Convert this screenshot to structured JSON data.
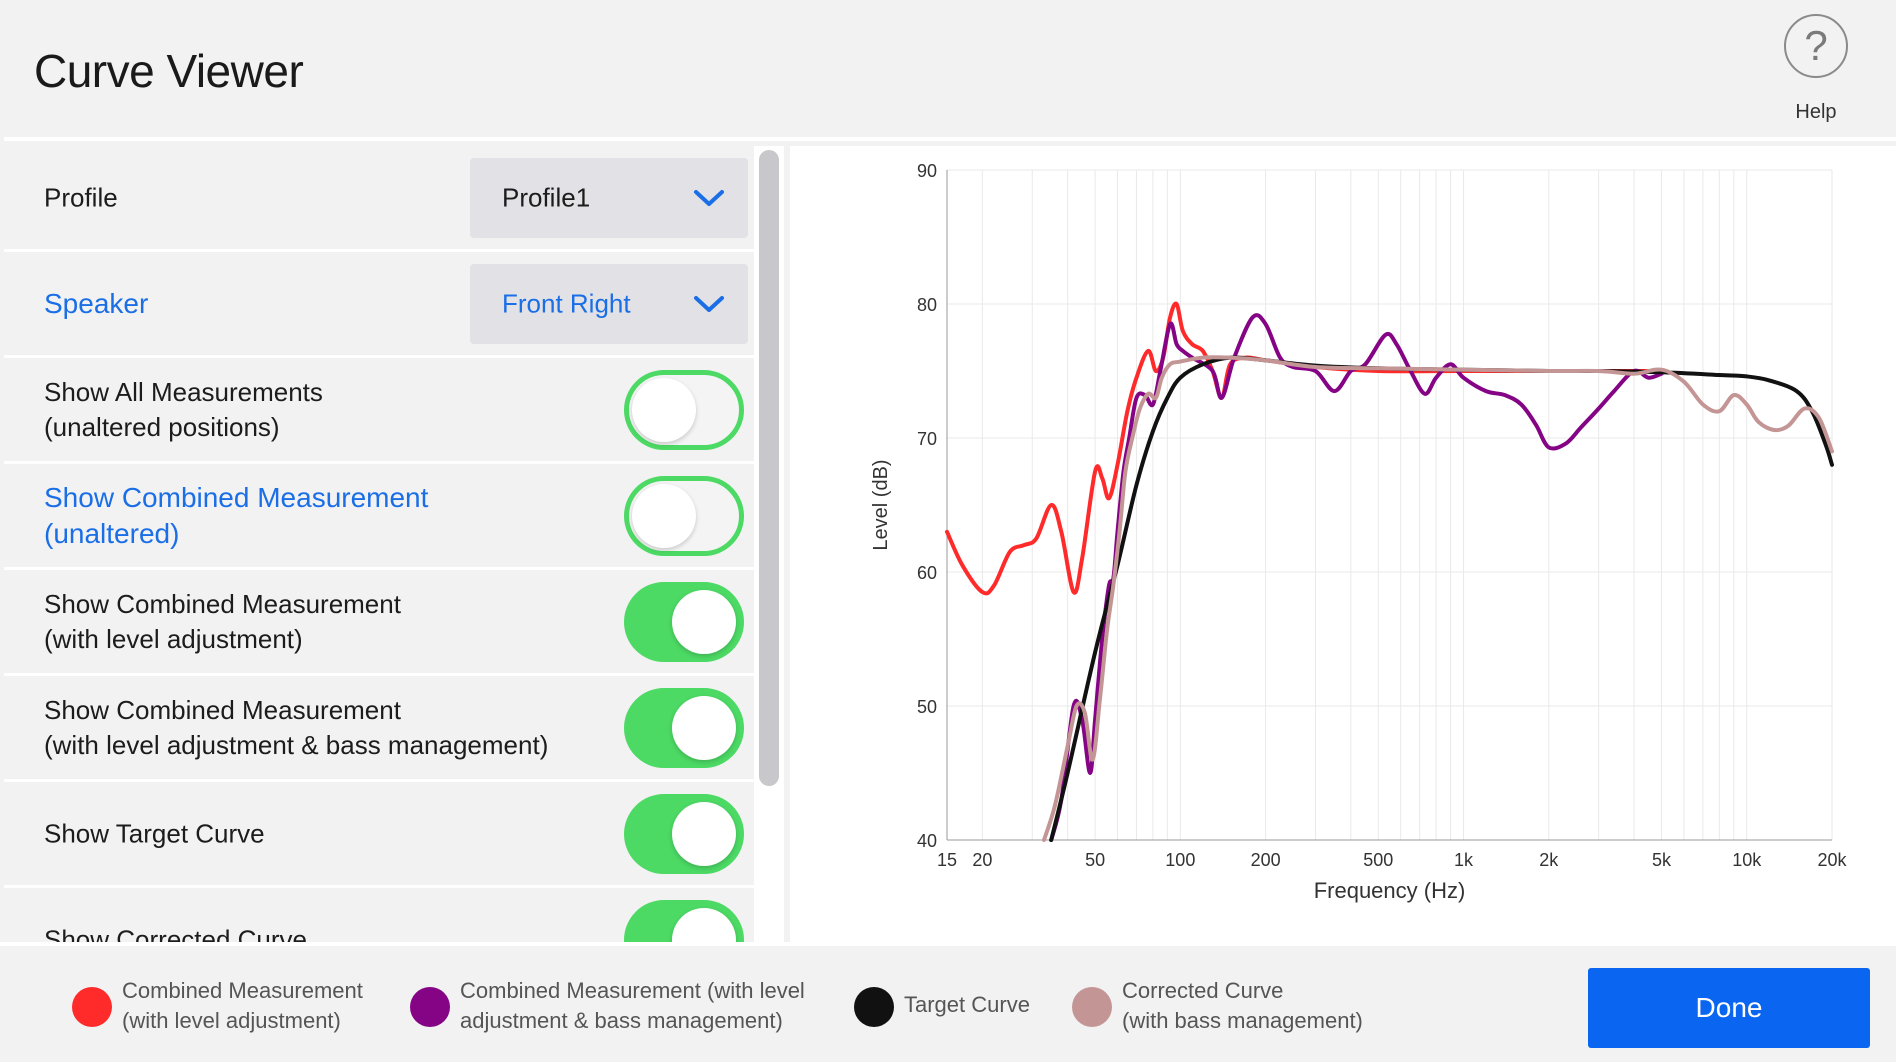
{
  "header": {
    "title": "Curve Viewer",
    "help_icon": "?",
    "help_label": "Help"
  },
  "settings": {
    "profile": {
      "label": "Profile",
      "value": "Profile1"
    },
    "speaker": {
      "label": "Speaker",
      "value": "Front Right"
    },
    "toggles": [
      {
        "label_line1": "Show All Measurements",
        "label_line2": "(unaltered  positions)",
        "on": false,
        "highlight": false
      },
      {
        "label_line1": "Show Combined Measurement",
        "label_line2": "(unaltered)",
        "on": false,
        "highlight": true
      },
      {
        "label_line1": "Show Combined Measurement",
        "label_line2": "(with level adjustment)",
        "on": true,
        "highlight": false
      },
      {
        "label_line1": "Show Combined Measurement",
        "label_line2": "(with level adjustment & bass management)",
        "on": true,
        "highlight": false
      },
      {
        "label_line1": "Show Target Curve",
        "label_line2": "",
        "on": true,
        "highlight": false
      },
      {
        "label_line1": "Show Corrected Curve",
        "label_line2": "",
        "on": true,
        "highlight": false
      }
    ]
  },
  "chart_data": {
    "type": "line",
    "xlabel": "Frequency (Hz)",
    "ylabel": "Level (dB)",
    "x_scale": "log",
    "xlim": [
      15,
      20000
    ],
    "ylim": [
      40,
      90
    ],
    "x_ticks": [
      {
        "value": 15,
        "label": "15"
      },
      {
        "value": 20,
        "label": "20"
      },
      {
        "value": 50,
        "label": "50"
      },
      {
        "value": 100,
        "label": "100"
      },
      {
        "value": 200,
        "label": "200"
      },
      {
        "value": 500,
        "label": "500"
      },
      {
        "value": 1000,
        "label": "1k"
      },
      {
        "value": 2000,
        "label": "2k"
      },
      {
        "value": 5000,
        "label": "5k"
      },
      {
        "value": 10000,
        "label": "10k"
      },
      {
        "value": 20000,
        "label": "20k"
      }
    ],
    "y_ticks": [
      40,
      50,
      60,
      70,
      80,
      90
    ],
    "grid": true,
    "series": [
      {
        "name": "Combined Measurement (with level adjustment)",
        "color": "#ff2a2a",
        "points": [
          [
            15,
            63
          ],
          [
            17,
            60.5
          ],
          [
            20,
            58.5
          ],
          [
            22,
            59
          ],
          [
            25,
            61.5
          ],
          [
            28,
            62
          ],
          [
            31,
            62.5
          ],
          [
            35,
            65
          ],
          [
            38,
            63
          ],
          [
            42,
            58.5
          ],
          [
            45,
            61
          ],
          [
            50,
            67.5
          ],
          [
            53,
            67
          ],
          [
            56,
            65.5
          ],
          [
            60,
            68
          ],
          [
            65,
            72
          ],
          [
            70,
            74.5
          ],
          [
            77,
            76.5
          ],
          [
            82,
            75
          ],
          [
            87,
            76
          ],
          [
            92,
            79
          ],
          [
            97,
            80
          ],
          [
            102,
            78
          ],
          [
            110,
            77
          ],
          [
            120,
            76.5
          ],
          [
            130,
            75
          ],
          [
            140,
            73
          ],
          [
            150,
            75.5
          ],
          [
            170,
            76
          ],
          [
            200,
            75.8
          ],
          [
            300,
            75.3
          ],
          [
            500,
            75
          ],
          [
            1000,
            75
          ],
          [
            2000,
            75
          ],
          [
            5000,
            75
          ]
        ]
      },
      {
        "name": "Combined Measurement (with level adjustment & bass management)",
        "color": "#850485",
        "points": [
          [
            35,
            40
          ],
          [
            38,
            43
          ],
          [
            42,
            50
          ],
          [
            45,
            49
          ],
          [
            48,
            45
          ],
          [
            50,
            49
          ],
          [
            53,
            55
          ],
          [
            56,
            59
          ],
          [
            58,
            59.5
          ],
          [
            60,
            63
          ],
          [
            63,
            67.5
          ],
          [
            66,
            70
          ],
          [
            70,
            73
          ],
          [
            75,
            73.2
          ],
          [
            80,
            72.5
          ],
          [
            85,
            75
          ],
          [
            92,
            78.5
          ],
          [
            97,
            77
          ],
          [
            102,
            76.5
          ],
          [
            110,
            76
          ],
          [
            130,
            75
          ],
          [
            140,
            73
          ],
          [
            155,
            76
          ],
          [
            180,
            79
          ],
          [
            200,
            78.5
          ],
          [
            225,
            76
          ],
          [
            250,
            75.3
          ],
          [
            300,
            75
          ],
          [
            350,
            73.5
          ],
          [
            400,
            75
          ],
          [
            450,
            75.5
          ],
          [
            530,
            77.7
          ],
          [
            580,
            77
          ],
          [
            650,
            75
          ],
          [
            730,
            73.3
          ],
          [
            800,
            74.5
          ],
          [
            900,
            75.5
          ],
          [
            1000,
            74.5
          ],
          [
            1200,
            73.5
          ],
          [
            1400,
            73.2
          ],
          [
            1600,
            72.5
          ],
          [
            1800,
            71
          ],
          [
            2000,
            69.3
          ],
          [
            2300,
            69.6
          ],
          [
            2600,
            70.8
          ],
          [
            3000,
            72.2
          ],
          [
            3400,
            73.5
          ],
          [
            4000,
            75
          ],
          [
            4500,
            74.5
          ],
          [
            5000,
            74.8
          ]
        ]
      },
      {
        "name": "Target Curve",
        "color": "#111111",
        "points": [
          [
            35,
            40
          ],
          [
            40,
            45
          ],
          [
            50,
            54
          ],
          [
            60,
            60.5
          ],
          [
            70,
            66.5
          ],
          [
            80,
            70.5
          ],
          [
            90,
            73
          ],
          [
            100,
            74.5
          ],
          [
            120,
            75.5
          ],
          [
            150,
            76
          ],
          [
            200,
            75.8
          ],
          [
            300,
            75.4
          ],
          [
            500,
            75.2
          ],
          [
            1000,
            75.1
          ],
          [
            2000,
            75
          ],
          [
            3000,
            75
          ],
          [
            5000,
            74.9
          ],
          [
            8000,
            74.7
          ],
          [
            10000,
            74.6
          ],
          [
            12000,
            74.3
          ],
          [
            15000,
            73.5
          ],
          [
            17000,
            72
          ],
          [
            19000,
            69.5
          ],
          [
            20000,
            68
          ]
        ]
      },
      {
        "name": "Corrected Curve (with bass management)",
        "color": "#c49595",
        "points": [
          [
            33,
            40
          ],
          [
            36,
            42.5
          ],
          [
            40,
            47
          ],
          [
            43,
            50
          ],
          [
            46,
            49.5
          ],
          [
            49,
            46
          ],
          [
            52,
            50.5
          ],
          [
            55,
            55.5
          ],
          [
            58,
            59
          ],
          [
            61,
            63
          ],
          [
            64,
            67.5
          ],
          [
            68,
            70.2
          ],
          [
            72,
            72.2
          ],
          [
            77,
            73.3
          ],
          [
            82,
            73
          ],
          [
            86,
            74.5
          ],
          [
            92,
            75.5
          ],
          [
            100,
            75.7
          ],
          [
            120,
            76
          ],
          [
            150,
            76
          ],
          [
            200,
            75.8
          ],
          [
            300,
            75.3
          ],
          [
            500,
            75.2
          ],
          [
            1000,
            75.1
          ],
          [
            2000,
            75
          ],
          [
            3000,
            75
          ],
          [
            4000,
            74.8
          ],
          [
            5000,
            75.1
          ],
          [
            6000,
            74.2
          ],
          [
            7000,
            72.5
          ],
          [
            8000,
            72
          ],
          [
            9000,
            73.2
          ],
          [
            10000,
            72.5
          ],
          [
            11000,
            71.2
          ],
          [
            12500,
            70.6
          ],
          [
            14000,
            70.9
          ],
          [
            16000,
            72.2
          ],
          [
            18000,
            71.5
          ],
          [
            20000,
            69
          ]
        ]
      }
    ]
  },
  "legend": [
    {
      "line1": "Combined Measurement",
      "line2": "(with level adjustment)",
      "color": "#ff2a2a"
    },
    {
      "line1": "Combined Measurement (with level",
      "line2": "adjustment & bass management)",
      "color": "#850485"
    },
    {
      "line1": "Target Curve",
      "line2": "",
      "color": "#111111"
    },
    {
      "line1": "Corrected Curve",
      "line2": "(with bass management)",
      "color": "#c49595"
    }
  ],
  "footer": {
    "done_label": "Done"
  }
}
